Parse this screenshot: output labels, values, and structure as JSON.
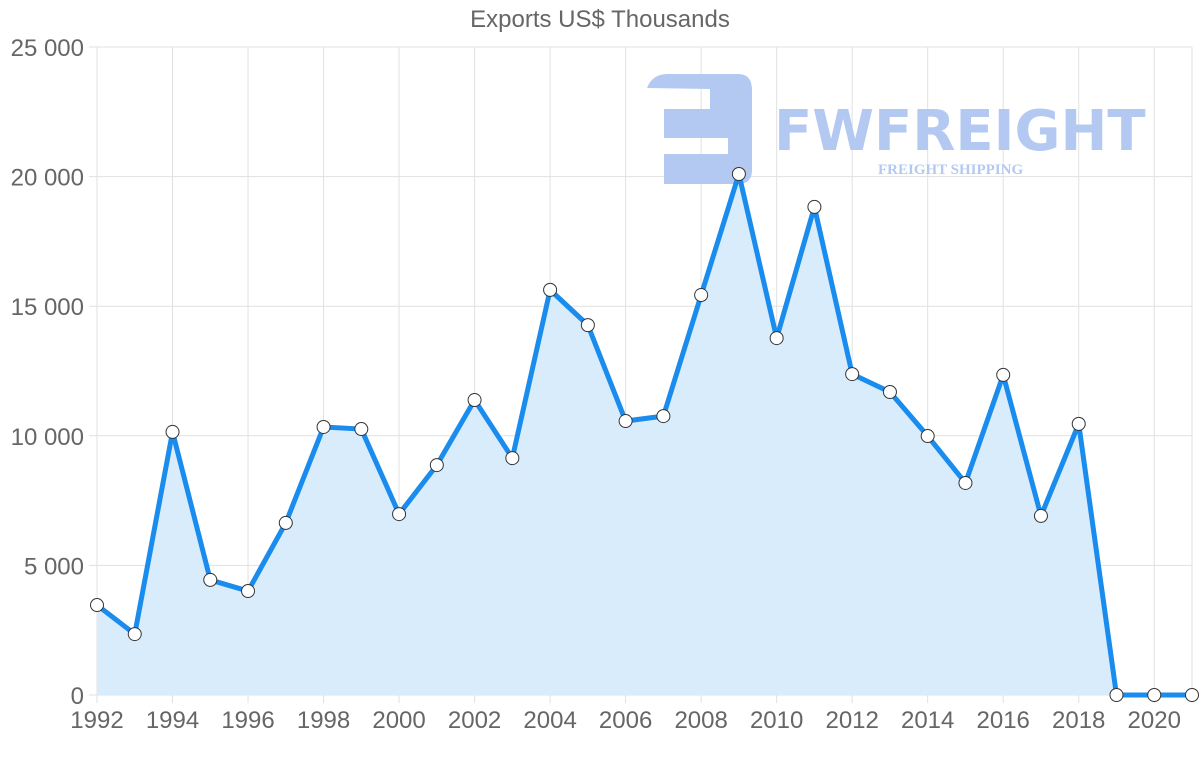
{
  "chart_data": {
    "type": "line",
    "title": "Exports US$ Thousands",
    "xlabel": "",
    "ylabel": "",
    "ylim": [
      0,
      25000
    ],
    "yticks": [
      "0",
      "5 000",
      "10 000",
      "15 000",
      "20 000",
      "25 000"
    ],
    "xticks": [
      "1992",
      "1994",
      "1996",
      "1998",
      "2000",
      "2002",
      "2004",
      "2006",
      "2008",
      "2010",
      "2012",
      "2014",
      "2016",
      "2018",
      "2020"
    ],
    "grid": true,
    "legend": "none",
    "fill": true,
    "colors": {
      "line": "#1a8ced",
      "fill": "#d9ecfc",
      "marker_fill": "#ffffff",
      "marker_stroke": "#333333"
    },
    "x": [
      1992,
      1993,
      1994,
      1995,
      1996,
      1997,
      1998,
      1999,
      2000,
      2001,
      2002,
      2003,
      2004,
      2005,
      2006,
      2007,
      2008,
      2009,
      2010,
      2011,
      2012,
      2013,
      2014,
      2015,
      2016,
      2017,
      2018,
      2019,
      2020,
      2021
    ],
    "series": [
      {
        "name": "Exports US$ Thousands",
        "values": [
          3470,
          2350,
          10150,
          4440,
          4010,
          6640,
          10340,
          10260,
          6980,
          8870,
          11380,
          9140,
          15630,
          14270,
          10570,
          10760,
          15430,
          20100,
          13770,
          18830,
          12380,
          11690,
          9990,
          8180,
          12350,
          6910,
          10460,
          0,
          0,
          0
        ]
      }
    ]
  },
  "watermark": {
    "brand": "FWFREIGHT",
    "tagline": "FREIGHT SHIPPING"
  }
}
